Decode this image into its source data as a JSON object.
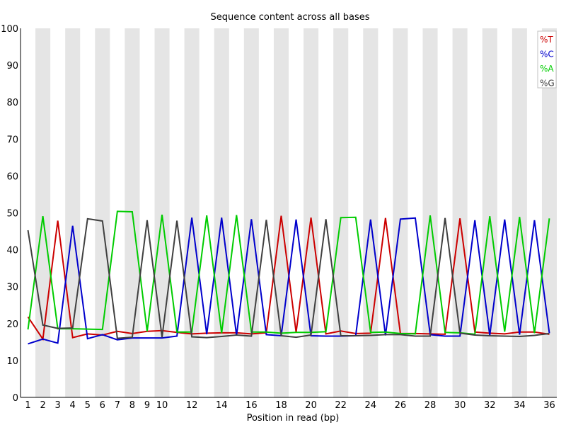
{
  "chart_data": {
    "type": "line",
    "title": "Sequence content across all bases",
    "xlabel": "Position in read (bp)",
    "ylabel": "",
    "ylim": [
      0,
      100
    ],
    "xlim": [
      1,
      36
    ],
    "yticks": [
      0,
      10,
      20,
      30,
      40,
      50,
      60,
      70,
      80,
      90,
      100
    ],
    "x": [
      1,
      2,
      3,
      4,
      5,
      6,
      7,
      8,
      9,
      10,
      11,
      12,
      13,
      14,
      15,
      16,
      17,
      18,
      19,
      20,
      21,
      22,
      23,
      24,
      25,
      26,
      27,
      28,
      29,
      30,
      31,
      32,
      33,
      34,
      35,
      36
    ],
    "xtick_labels": [
      "1",
      "2",
      "3",
      "4",
      "5",
      "6",
      "7",
      "8",
      "9",
      "10",
      "12",
      "14",
      "16",
      "18",
      "20",
      "22",
      "24",
      "26",
      "28",
      "30",
      "32",
      "34",
      "36"
    ],
    "xtick_positions": [
      1,
      2,
      3,
      4,
      5,
      6,
      7,
      8,
      9,
      10,
      12,
      14,
      16,
      18,
      20,
      22,
      24,
      26,
      28,
      30,
      32,
      34,
      36
    ],
    "legend": {
      "placement": "top-right",
      "entries": [
        "%T",
        "%C",
        "%A",
        "%G"
      ]
    },
    "grid": "alternating vertical bands",
    "band_color": "#e5e5e5",
    "series": [
      {
        "name": "%T",
        "color": "#cc0000",
        "values": [
          21.8,
          15.8,
          47.9,
          16.2,
          17.2,
          16.9,
          17.9,
          17.3,
          17.9,
          18.1,
          17.6,
          17.2,
          17.4,
          17.5,
          17.5,
          17.2,
          17.5,
          49.2,
          17.6,
          48.7,
          17.2,
          18.0,
          17.3,
          17.4,
          48.6,
          17.3,
          17.3,
          17.2,
          17.1,
          48.5,
          17.7,
          17.4,
          17.2,
          17.7,
          17.7,
          17.1
        ]
      },
      {
        "name": "%C",
        "color": "#0000cc",
        "values": [
          14.5,
          15.8,
          14.7,
          46.5,
          15.9,
          17.0,
          15.6,
          16.1,
          16.1,
          16.1,
          16.6,
          48.7,
          17.1,
          48.7,
          16.8,
          48.3,
          17.0,
          16.7,
          48.2,
          16.7,
          16.6,
          16.6,
          16.7,
          48.2,
          16.8,
          48.3,
          48.6,
          17.0,
          16.6,
          16.6,
          48.0,
          16.8,
          48.2,
          17.0,
          48.0,
          17.4
        ]
      },
      {
        "name": "%A",
        "color": "#00cc00",
        "values": [
          18.4,
          49.1,
          18.6,
          18.6,
          18.5,
          18.4,
          50.4,
          50.3,
          17.9,
          49.5,
          17.7,
          17.7,
          49.3,
          17.4,
          49.4,
          17.7,
          17.7,
          17.4,
          17.6,
          17.6,
          17.8,
          48.7,
          48.8,
          17.6,
          17.7,
          17.3,
          17.2,
          49.3,
          17.6,
          17.5,
          17.1,
          49.1,
          17.8,
          48.9,
          17.4,
          48.5
        ]
      },
      {
        "name": "%G",
        "color": "#404040",
        "values": [
          45.3,
          19.6,
          18.7,
          18.8,
          48.4,
          47.8,
          16.0,
          16.3,
          48.0,
          16.3,
          47.9,
          16.4,
          16.2,
          16.5,
          16.9,
          16.6,
          48.1,
          16.7,
          16.3,
          16.9,
          48.3,
          16.7,
          16.7,
          16.8,
          17.0,
          17.0,
          16.6,
          16.6,
          48.6,
          17.4,
          16.9,
          16.7,
          16.6,
          16.5,
          16.8,
          17.3
        ]
      }
    ]
  }
}
